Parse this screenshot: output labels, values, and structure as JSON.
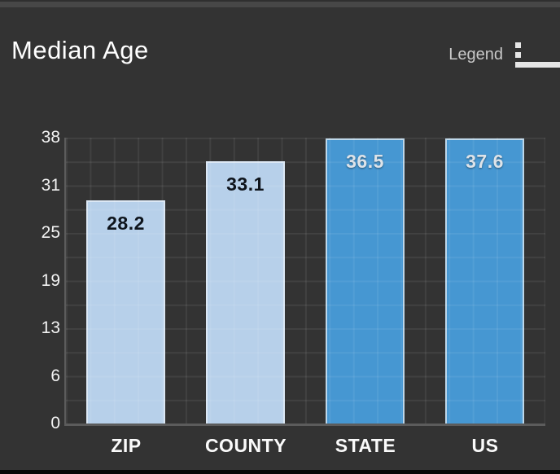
{
  "header": {
    "title": "Median Age",
    "legend_label": "Legend",
    "legend_icon": "list-icon"
  },
  "chart_data": {
    "type": "bar",
    "title": "Median Age",
    "categories": [
      "ZIP",
      "COUNTY",
      "STATE",
      "US"
    ],
    "values": [
      28.2,
      33.1,
      36.5,
      37.6
    ],
    "value_labels": [
      "28.2",
      "33.1",
      "36.5",
      "37.6"
    ],
    "y_ticks": [
      "0",
      "6",
      "13",
      "19",
      "25",
      "31",
      "38"
    ],
    "ylim": [
      0,
      38
    ],
    "xlabel": "",
    "ylabel": "",
    "grid": true,
    "legend_position": "top-right",
    "bar_fill_colors": [
      "#b7d0ea",
      "#b7d0ea",
      "#4697d2",
      "#4697d2"
    ],
    "bar_border_colors": [
      "#dbe7f4",
      "#dbe7f4",
      "#bdd7ea",
      "#bdd7ea"
    ],
    "value_text_colors": [
      "#0e141c",
      "#0e141c",
      "#dde3e9",
      "#dde3e9"
    ]
  },
  "colors": {
    "background": "#333333",
    "top_strip": "#474747",
    "bottom_strip": "#060606",
    "axis_line": "#5c5c5c",
    "grid_line": "#414141",
    "axis_text": "#f2f2f2",
    "title_text": "#ffffff",
    "legend_text": "#c9c9c9"
  }
}
